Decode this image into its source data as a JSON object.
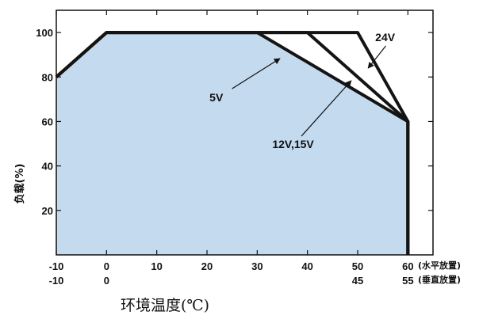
{
  "chart_data": {
    "type": "line",
    "xlabel": "环境温度(℃)",
    "ylabel": "负载(%)",
    "x_ticks_top": [
      "-10",
      "0",
      "10",
      "20",
      "30",
      "40",
      "50",
      "60"
    ],
    "x_ticks_bottom": [
      "-10",
      "0",
      "",
      "",
      "",
      "",
      "45",
      "55"
    ],
    "x_tick_values": [
      -10,
      0,
      10,
      20,
      30,
      40,
      50,
      60
    ],
    "row_labels": [
      "(水平放置)",
      "(垂直放置)"
    ],
    "y_ticks": [
      20,
      40,
      60,
      80,
      100
    ],
    "xlim": [
      -10,
      65
    ],
    "ylim": [
      0,
      110
    ],
    "series": [
      {
        "name": "5V",
        "x": [
          -10,
          0,
          30,
          60,
          60
        ],
        "y": [
          80,
          100,
          100,
          60,
          0
        ]
      },
      {
        "name": "12V,15V",
        "x": [
          -10,
          0,
          40,
          60,
          60
        ],
        "y": [
          80,
          100,
          100,
          60,
          0
        ]
      },
      {
        "name": "24V",
        "x": [
          -10,
          0,
          50,
          60,
          60
        ],
        "y": [
          80,
          100,
          100,
          60,
          0
        ]
      }
    ],
    "fill_color": "#c3daef",
    "line_color": "#141414"
  }
}
